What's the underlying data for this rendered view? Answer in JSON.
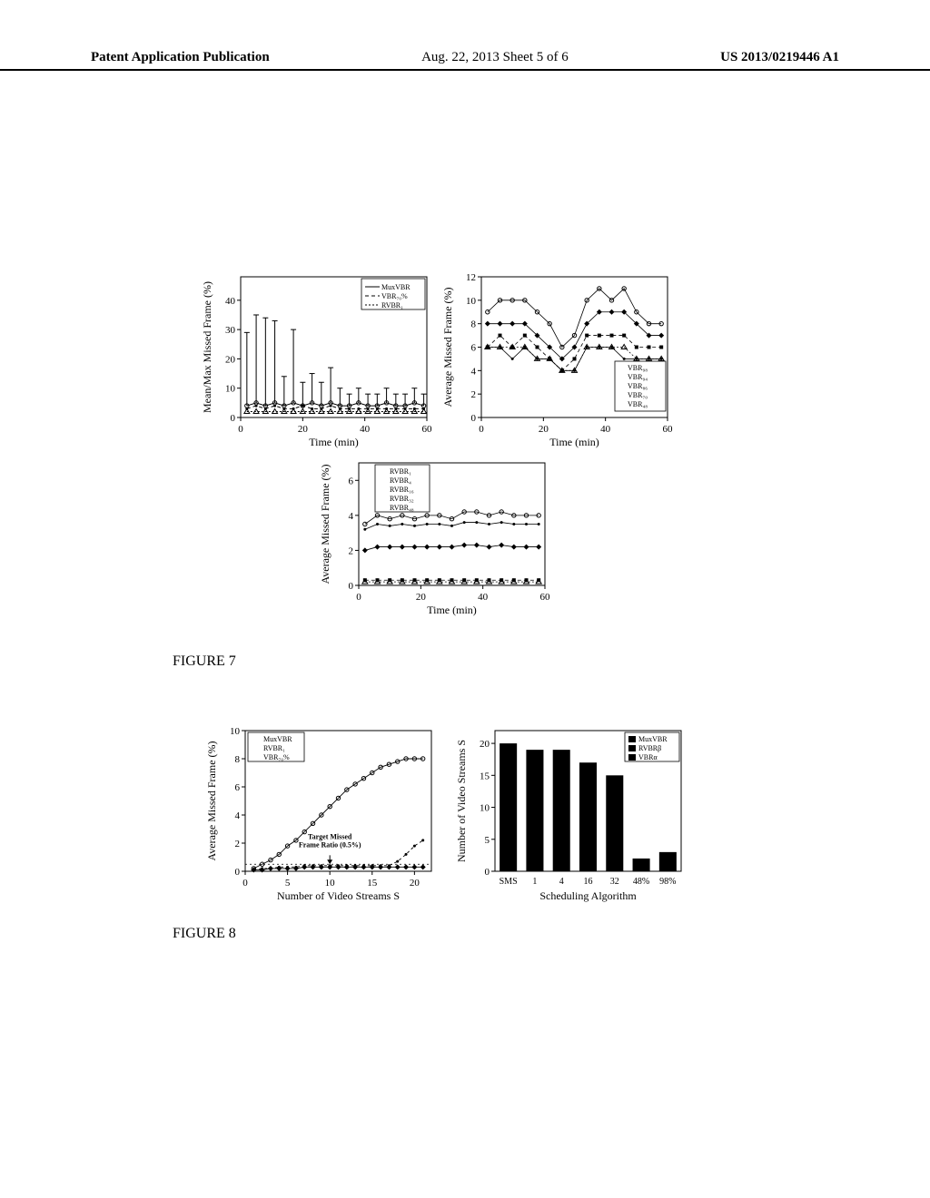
{
  "header": {
    "left": "Patent Application Publication",
    "mid": "Aug. 22, 2013  Sheet 5 of 6",
    "right": "US 2013/0219446 A1"
  },
  "captions": {
    "fig7": "FIGURE 7",
    "fig8": "FIGURE 8"
  },
  "fig7a": {
    "type": "line-errorbar",
    "xlabel": "Time (min)",
    "ylabel": "Mean/Max Missed Frame (%)",
    "xlim": [
      0,
      60
    ],
    "ylim": [
      0,
      48
    ],
    "yticks": [
      0,
      10,
      20,
      30,
      40
    ],
    "xticks": [
      0,
      20,
      40,
      60
    ],
    "legend": [
      "MuxVBR",
      "VBR₇₀%",
      "RVBR₁"
    ],
    "colors": {
      "mux": "#000000",
      "vbr70": "#000000",
      "rvbr1": "#000000"
    },
    "series_mux": {
      "x": [
        2,
        5,
        8,
        11,
        14,
        17,
        20,
        23,
        26,
        29,
        32,
        35,
        38,
        41,
        44,
        47,
        50,
        53,
        56,
        59
      ],
      "y": [
        4,
        5,
        4,
        5,
        4,
        5,
        4,
        5,
        4,
        5,
        4,
        4,
        5,
        4,
        4,
        5,
        4,
        4,
        5,
        4
      ],
      "err": [
        25,
        30,
        30,
        28,
        10,
        25,
        8,
        10,
        8,
        12,
        6,
        4,
        5,
        4,
        4,
        5,
        4,
        4,
        5,
        4
      ]
    },
    "series_vbr70": {
      "x": [
        2,
        5,
        8,
        11,
        14,
        17,
        20,
        23,
        26,
        29,
        32,
        35,
        38,
        41,
        44,
        47,
        50,
        53,
        56,
        59
      ],
      "y": [
        3,
        4,
        3,
        4,
        3,
        3,
        4,
        3,
        3,
        4,
        3,
        3,
        3,
        3,
        3,
        3,
        3,
        3,
        3,
        3
      ]
    },
    "series_rvbr1": {
      "x": [
        2,
        5,
        8,
        11,
        14,
        17,
        20,
        23,
        26,
        29,
        32,
        35,
        38,
        41,
        44,
        47,
        50,
        53,
        56,
        59
      ],
      "y": [
        2,
        2,
        2,
        2,
        2,
        2,
        2,
        2,
        2,
        2,
        2,
        2,
        2,
        2,
        2,
        2,
        2,
        2,
        2,
        2
      ]
    }
  },
  "fig7b": {
    "type": "line",
    "xlabel": "Time (min)",
    "ylabel": "Average Missed Frame (%)",
    "xlim": [
      0,
      60
    ],
    "ylim": [
      0,
      12
    ],
    "yticks": [
      0,
      2,
      4,
      6,
      8,
      10,
      12
    ],
    "xticks": [
      0,
      20,
      40,
      60
    ],
    "legend": [
      "VBR₉₈",
      "VBR₉₄",
      "VBR₈₆",
      "VBR₇₀",
      "VBR₄₈"
    ],
    "vbr98": {
      "x": [
        2,
        6,
        10,
        14,
        18,
        22,
        26,
        30,
        34,
        38,
        42,
        46,
        50,
        54,
        58
      ],
      "y": [
        9,
        10,
        10,
        10,
        9,
        8,
        6,
        7,
        10,
        11,
        10,
        11,
        9,
        8,
        8
      ]
    },
    "vbr94": {
      "x": [
        2,
        6,
        10,
        14,
        18,
        22,
        26,
        30,
        34,
        38,
        42,
        46,
        50,
        54,
        58
      ],
      "y": [
        8,
        8,
        8,
        8,
        7,
        6,
        5,
        6,
        8,
        9,
        9,
        9,
        8,
        7,
        7
      ]
    },
    "vbr86": {
      "x": [
        2,
        6,
        10,
        14,
        18,
        22,
        26,
        30,
        34,
        38,
        42,
        46,
        50,
        54,
        58
      ],
      "y": [
        6,
        7,
        6,
        7,
        6,
        5,
        4,
        5,
        7,
        7,
        7,
        7,
        6,
        6,
        6
      ]
    },
    "vbr70": {
      "x": [
        2,
        6,
        10,
        14,
        18,
        22,
        26,
        30,
        34,
        38,
        42,
        46,
        50,
        54,
        58
      ],
      "y": [
        6,
        6,
        6,
        6,
        5,
        5,
        4,
        4,
        6,
        6,
        6,
        6,
        5,
        5,
        5
      ]
    },
    "vbr48": {
      "x": [
        2,
        6,
        10,
        14,
        18,
        22,
        26,
        30,
        34,
        38,
        42,
        46,
        50,
        54,
        58
      ],
      "y": [
        6,
        6,
        5,
        6,
        5,
        5,
        4,
        4,
        6,
        6,
        6,
        5,
        5,
        5,
        5
      ]
    }
  },
  "fig7c": {
    "type": "line",
    "xlabel": "Time (min)",
    "ylabel": "Average Missed Frame (%)",
    "xlim": [
      0,
      60
    ],
    "ylim": [
      0,
      7
    ],
    "yticks": [
      0,
      2,
      4,
      6
    ],
    "xticks": [
      0,
      20,
      40,
      60
    ],
    "legend": [
      "RVBR₁",
      "RVBR₄",
      "RVBR₁₆",
      "RVBR₃₂",
      "RVBR₄₈"
    ],
    "rvbr1": {
      "x": [
        2,
        6,
        10,
        14,
        18,
        22,
        26,
        30,
        34,
        38,
        42,
        46,
        50,
        54,
        58
      ],
      "y": [
        3.5,
        4,
        3.8,
        4,
        3.8,
        4,
        4,
        3.8,
        4.2,
        4.2,
        4,
        4.2,
        4,
        4,
        4
      ]
    },
    "rvbr4": {
      "x": [
        2,
        6,
        10,
        14,
        18,
        22,
        26,
        30,
        34,
        38,
        42,
        46,
        50,
        54,
        58
      ],
      "y": [
        3.2,
        3.5,
        3.4,
        3.5,
        3.4,
        3.5,
        3.5,
        3.4,
        3.6,
        3.6,
        3.5,
        3.6,
        3.5,
        3.5,
        3.5
      ]
    },
    "rvbr16": {
      "x": [
        2,
        6,
        10,
        14,
        18,
        22,
        26,
        30,
        34,
        38,
        42,
        46,
        50,
        54,
        58
      ],
      "y": [
        2,
        2.2,
        2.2,
        2.2,
        2.2,
        2.2,
        2.2,
        2.2,
        2.3,
        2.3,
        2.2,
        2.3,
        2.2,
        2.2,
        2.2
      ]
    },
    "rvbr32": {
      "x": [
        2,
        6,
        10,
        14,
        18,
        22,
        26,
        30,
        34,
        38,
        42,
        46,
        50,
        54,
        58
      ],
      "y": [
        0.3,
        0.3,
        0.3,
        0.3,
        0.3,
        0.3,
        0.3,
        0.3,
        0.3,
        0.3,
        0.3,
        0.3,
        0.3,
        0.3,
        0.3
      ]
    },
    "rvbr48": {
      "x": [
        2,
        6,
        10,
        14,
        18,
        22,
        26,
        30,
        34,
        38,
        42,
        46,
        50,
        54,
        58
      ],
      "y": [
        0.2,
        0.2,
        0.2,
        0.2,
        0.2,
        0.2,
        0.2,
        0.2,
        0.2,
        0.2,
        0.2,
        0.2,
        0.2,
        0.2,
        0.2
      ]
    }
  },
  "fig8a": {
    "type": "line",
    "xlabel": "Number of Video Streams S",
    "ylabel": "Average Missed Frame (%)",
    "xlim": [
      0,
      22
    ],
    "ylim": [
      0,
      10
    ],
    "yticks": [
      0,
      2,
      4,
      6,
      8,
      10
    ],
    "xticks": [
      0,
      5,
      10,
      15,
      20
    ],
    "legend": [
      "MuxVBR",
      "RVBR₁",
      "VBR₇₀%"
    ],
    "annotation": "Target Missed\nFrame Ratio (0.5%)",
    "threshold_y": 0.5,
    "mux": {
      "x": [
        1,
        2,
        3,
        4,
        5,
        6,
        7,
        8,
        9,
        10,
        11,
        12,
        13,
        14,
        15,
        16,
        17,
        18,
        19,
        20,
        21
      ],
      "y": [
        0.2,
        0.5,
        0.8,
        1.2,
        1.8,
        2.2,
        2.8,
        3.4,
        4.0,
        4.6,
        5.2,
        5.8,
        6.2,
        6.6,
        7.0,
        7.4,
        7.6,
        7.8,
        8.0,
        8.0,
        8.0
      ]
    },
    "rvbr1": {
      "x": [
        1,
        2,
        3,
        4,
        5,
        6,
        7,
        8,
        9,
        10,
        11,
        12,
        13,
        14,
        15,
        16,
        17,
        18,
        19,
        20,
        21
      ],
      "y": [
        0.1,
        0.2,
        0.2,
        0.3,
        0.3,
        0.3,
        0.4,
        0.4,
        0.4,
        0.4,
        0.4,
        0.4,
        0.4,
        0.4,
        0.4,
        0.4,
        0.4,
        0.7,
        1.2,
        1.8,
        2.2
      ]
    },
    "vbr70": {
      "x": [
        1,
        2,
        3,
        4,
        5,
        6,
        7,
        8,
        9,
        10,
        11,
        12,
        13,
        14,
        15,
        16,
        17,
        18,
        19,
        20,
        21
      ],
      "y": [
        0.1,
        0.1,
        0.2,
        0.2,
        0.2,
        0.2,
        0.3,
        0.3,
        0.3,
        0.3,
        0.3,
        0.3,
        0.3,
        0.3,
        0.3,
        0.3,
        0.3,
        0.3,
        0.3,
        0.3,
        0.3
      ]
    }
  },
  "fig8b": {
    "type": "bar",
    "xlabel": "Scheduling Algorithm",
    "ylabel": "Number of Video Streams S",
    "ylim": [
      0,
      22
    ],
    "yticks": [
      0,
      5,
      10,
      15,
      20
    ],
    "categories": [
      "SMS",
      "1",
      "4",
      "16",
      "32",
      "48%",
      "98%"
    ],
    "legend": [
      "MuxVBR",
      "RVBRβ",
      "VBRα"
    ],
    "colors": [
      "#000000",
      "#000000",
      "#000000"
    ],
    "values": [
      20,
      19,
      19,
      17,
      15,
      2,
      3
    ]
  }
}
